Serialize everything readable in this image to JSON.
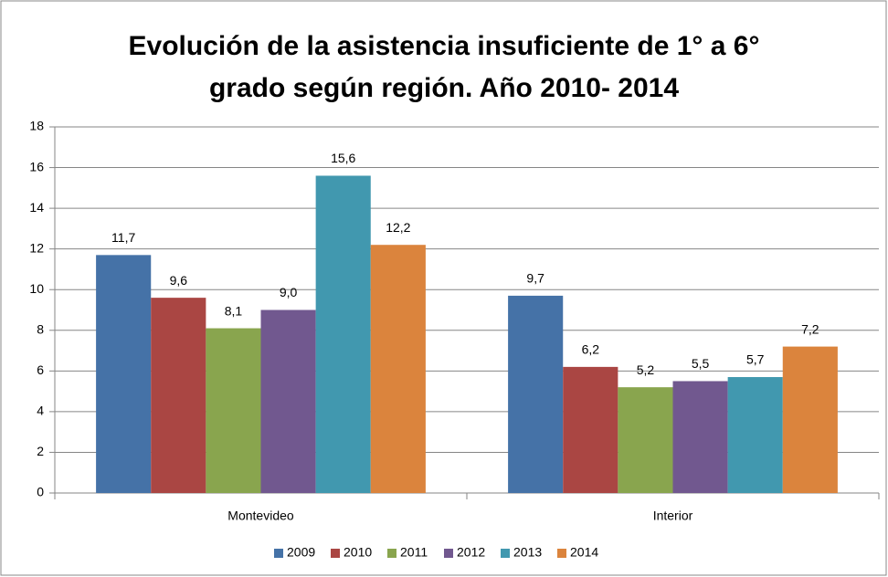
{
  "chart_data": {
    "type": "bar",
    "title": [
      "Evolución de la asistencia insuficiente de 1° a 6°",
      "grado según región. Año 2010- 2014"
    ],
    "categories": [
      "Montevideo",
      "Interior"
    ],
    "series": [
      {
        "name": "2009",
        "color": "#4572a7",
        "values": [
          11.7,
          9.7
        ],
        "value_labels": [
          "11,7",
          "9,7"
        ]
      },
      {
        "name": "2010",
        "color": "#aa4643",
        "values": [
          9.6,
          6.2
        ],
        "value_labels": [
          "9,6",
          "6,2"
        ]
      },
      {
        "name": "2011",
        "color": "#89a54e",
        "values": [
          8.1,
          5.2
        ],
        "value_labels": [
          "8,1",
          "5,2"
        ]
      },
      {
        "name": "2012",
        "color": "#71588f",
        "values": [
          9.0,
          5.5
        ],
        "value_labels": [
          "9,0",
          "5,5"
        ]
      },
      {
        "name": "2013",
        "color": "#4198af",
        "values": [
          15.6,
          5.7
        ],
        "value_labels": [
          "15,6",
          "5,7"
        ]
      },
      {
        "name": "2014",
        "color": "#db843d",
        "values": [
          12.2,
          7.2
        ],
        "value_labels": [
          "12,2",
          "7,2"
        ]
      }
    ],
    "ylim": [
      0,
      18
    ],
    "yticks": [
      0,
      2,
      4,
      6,
      8,
      10,
      12,
      14,
      16,
      18
    ],
    "grid": true,
    "legend": "bottom"
  }
}
